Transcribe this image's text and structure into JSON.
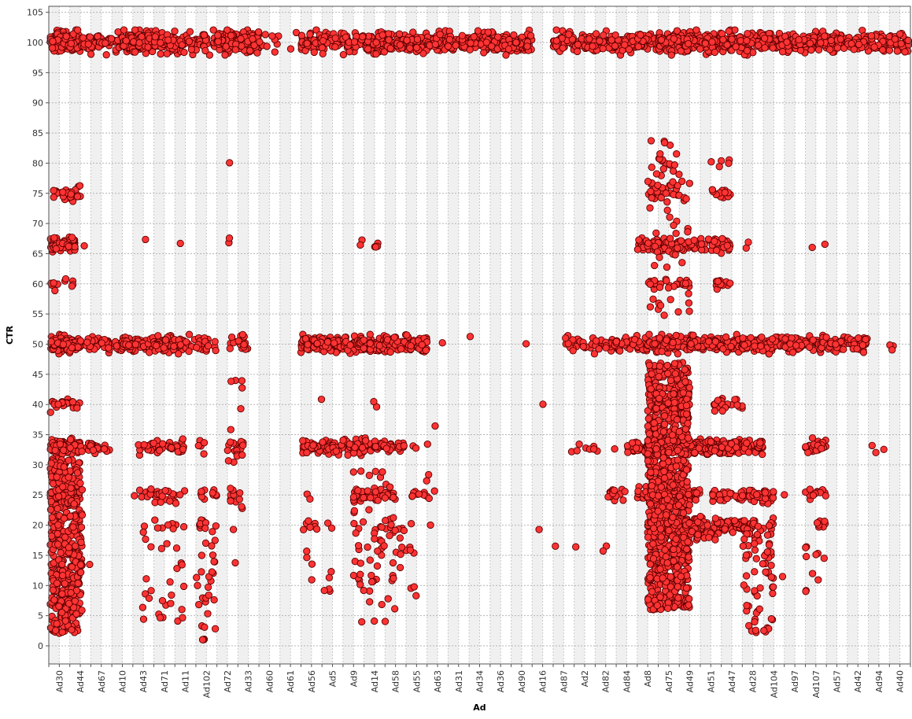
{
  "chart_data": {
    "type": "scatter",
    "title": "",
    "xlabel": "Ad",
    "ylabel": "CTR",
    "ylim": [
      -3,
      106
    ],
    "ytick_step": 5,
    "grid": true,
    "legend": "none",
    "point_color": "#ff3333",
    "point_edge": "#5a0000",
    "categories": [
      "Ad30",
      "Ad44",
      "Ad67",
      "Ad10",
      "Ad43",
      "Ad71",
      "Ad11",
      "Ad102",
      "Ad72",
      "Ad33",
      "Ad60",
      "Ad61",
      "Ad56",
      "Ad5",
      "Ad9",
      "Ad14",
      "Ad58",
      "Ad55",
      "Ad63",
      "Ad31",
      "Ad34",
      "Ad36",
      "Ad90",
      "Ad16",
      "Ad87",
      "Ad2",
      "Ad82",
      "Ad84",
      "Ad8",
      "Ad75",
      "Ad49",
      "Ad51",
      "Ad47",
      "Ad28",
      "Ad104",
      "Ad97",
      "Ad107",
      "Ad57",
      "Ad42",
      "Ad94",
      "Ad40"
    ],
    "slots_per_label": 2,
    "bands": [
      {
        "y": 100,
        "spread": 1.3,
        "groups": [
          {
            "from": 0,
            "to": 3,
            "n": 220
          },
          {
            "from": 3,
            "to": 5,
            "n": 40
          },
          {
            "from": 5,
            "to": 7,
            "n": 25
          },
          {
            "from": 7,
            "to": 10,
            "n": 160
          },
          {
            "from": 10,
            "to": 13,
            "n": 90
          },
          {
            "from": 13,
            "to": 16,
            "n": 40
          },
          {
            "from": 16,
            "to": 20,
            "n": 230
          },
          {
            "from": 20,
            "to": 22,
            "n": 10
          },
          {
            "from": 23,
            "to": 23.6,
            "n": 2
          },
          {
            "from": 24,
            "to": 28,
            "n": 90
          },
          {
            "from": 28,
            "to": 33,
            "n": 120
          },
          {
            "from": 33,
            "to": 38,
            "n": 130
          },
          {
            "from": 38,
            "to": 46,
            "n": 220
          },
          {
            "from": 48,
            "to": 58,
            "n": 200
          },
          {
            "from": 58,
            "to": 64,
            "n": 180
          },
          {
            "from": 64,
            "to": 71,
            "n": 220
          },
          {
            "from": 71,
            "to": 76,
            "n": 110
          },
          {
            "from": 76,
            "to": 83,
            "n": 110
          }
        ]
      },
      {
        "y": 50,
        "spread": 1.0,
        "groups": [
          {
            "from": 0,
            "to": 3,
            "n": 160
          },
          {
            "from": 3,
            "to": 7,
            "n": 40
          },
          {
            "from": 7,
            "to": 10,
            "n": 80
          },
          {
            "from": 10,
            "to": 13,
            "n": 70
          },
          {
            "from": 13,
            "to": 16,
            "n": 25
          },
          {
            "from": 17,
            "to": 19,
            "n": 20
          },
          {
            "from": 24,
            "to": 28,
            "n": 130
          },
          {
            "from": 28,
            "to": 32,
            "n": 110
          },
          {
            "from": 32,
            "to": 36,
            "n": 80
          },
          {
            "from": 36.5,
            "to": 37.5,
            "n": 1
          },
          {
            "from": 40,
            "to": 41,
            "n": 1
          },
          {
            "from": 45,
            "to": 46,
            "n": 1
          },
          {
            "from": 49,
            "to": 52,
            "n": 25
          },
          {
            "from": 52,
            "to": 57,
            "n": 70
          },
          {
            "from": 57,
            "to": 61,
            "n": 110
          },
          {
            "from": 61,
            "to": 66,
            "n": 170
          },
          {
            "from": 66,
            "to": 70,
            "n": 110
          },
          {
            "from": 70,
            "to": 74,
            "n": 90
          },
          {
            "from": 74,
            "to": 76,
            "n": 30
          },
          {
            "from": 76,
            "to": 78,
            "n": 35
          },
          {
            "from": 80,
            "to": 81,
            "n": 3
          }
        ]
      },
      {
        "y": 33,
        "spread": 0.9,
        "groups": [
          {
            "from": 0,
            "to": 3,
            "n": 140
          },
          {
            "from": 3,
            "to": 6,
            "n": 25
          },
          {
            "from": 8,
            "to": 9,
            "n": 3
          },
          {
            "from": 9,
            "to": 11,
            "n": 20
          },
          {
            "from": 11,
            "to": 13,
            "n": 20
          },
          {
            "from": 14,
            "to": 15,
            "n": 5
          },
          {
            "from": 17,
            "to": 18.5,
            "n": 15
          },
          {
            "from": 24,
            "to": 27,
            "n": 50
          },
          {
            "from": 27,
            "to": 31,
            "n": 60
          },
          {
            "from": 31,
            "to": 33,
            "n": 25
          },
          {
            "from": 33,
            "to": 35,
            "n": 10
          },
          {
            "from": 49,
            "to": 50,
            "n": 1
          },
          {
            "from": 50,
            "to": 54,
            "n": 8
          },
          {
            "from": 55,
            "to": 57,
            "n": 30
          },
          {
            "from": 57,
            "to": 60,
            "n": 90
          },
          {
            "from": 60,
            "to": 63,
            "n": 120
          },
          {
            "from": 63,
            "to": 66,
            "n": 100
          },
          {
            "from": 66,
            "to": 68,
            "n": 40
          },
          {
            "from": 72,
            "to": 74,
            "n": 25
          },
          {
            "from": 78,
            "to": 80,
            "n": 3
          }
        ]
      },
      {
        "y": 66.5,
        "spread": 0.9,
        "groups": [
          {
            "from": 0,
            "to": 2.5,
            "n": 90
          },
          {
            "from": 3,
            "to": 3.6,
            "n": 1
          },
          {
            "from": 9,
            "to": 9.6,
            "n": 1
          },
          {
            "from": 12,
            "to": 12.6,
            "n": 1
          },
          {
            "from": 17,
            "to": 18,
            "n": 2
          },
          {
            "from": 29,
            "to": 30,
            "n": 2
          },
          {
            "from": 30,
            "to": 32,
            "n": 4
          },
          {
            "from": 56,
            "to": 62,
            "n": 90
          },
          {
            "from": 62,
            "to": 65,
            "n": 40
          },
          {
            "from": 66,
            "to": 67,
            "n": 2
          },
          {
            "from": 72.5,
            "to": 73.5,
            "n": 1
          }
        ]
      },
      {
        "y": 25,
        "spread": 0.9,
        "groups": [
          {
            "from": 0,
            "to": 3,
            "n": 60
          },
          {
            "from": 8,
            "to": 13,
            "n": 30
          },
          {
            "from": 14,
            "to": 16,
            "n": 10
          },
          {
            "from": 17,
            "to": 18.5,
            "n": 6
          },
          {
            "from": 24.5,
            "to": 25.5,
            "n": 2
          },
          {
            "from": 29,
            "to": 33,
            "n": 45
          },
          {
            "from": 34,
            "to": 36,
            "n": 8
          },
          {
            "from": 53,
            "to": 55,
            "n": 15
          },
          {
            "from": 56,
            "to": 60,
            "n": 80
          },
          {
            "from": 60,
            "to": 62,
            "n": 20
          },
          {
            "from": 63,
            "to": 67,
            "n": 50
          },
          {
            "from": 67,
            "to": 69,
            "n": 25
          },
          {
            "from": 70,
            "to": 71,
            "n": 1
          },
          {
            "from": 72,
            "to": 74,
            "n": 12
          }
        ]
      },
      {
        "y": 40,
        "spread": 0.9,
        "groups": [
          {
            "from": 0,
            "to": 3,
            "n": 25
          },
          {
            "from": 30.5,
            "to": 31.5,
            "n": 2
          },
          {
            "from": 57,
            "to": 60,
            "n": 45
          },
          {
            "from": 63,
            "to": 66,
            "n": 25
          }
        ]
      },
      {
        "y": 75,
        "spread": 0.9,
        "groups": [
          {
            "from": 0,
            "to": 3,
            "n": 30
          },
          {
            "from": 57,
            "to": 60,
            "n": 30
          },
          {
            "from": 63,
            "to": 65,
            "n": 12
          }
        ]
      },
      {
        "y": 60,
        "spread": 0.7,
        "groups": [
          {
            "from": 0,
            "to": 1,
            "n": 6
          },
          {
            "from": 1.5,
            "to": 2.5,
            "n": 5
          },
          {
            "from": 57,
            "to": 61,
            "n": 25
          },
          {
            "from": 63.5,
            "to": 65,
            "n": 12
          }
        ]
      },
      {
        "y": 80,
        "spread": 0.7,
        "groups": [
          {
            "from": 57,
            "to": 60,
            "n": 8
          },
          {
            "from": 62,
            "to": 65,
            "n": 5
          },
          {
            "from": 17,
            "to": 17.6,
            "n": 1
          }
        ]
      },
      {
        "y": 20,
        "spread": 1.0,
        "groups": [
          {
            "from": 9,
            "to": 13,
            "n": 10
          },
          {
            "from": 14,
            "to": 16,
            "n": 8
          },
          {
            "from": 24,
            "to": 27,
            "n": 8
          },
          {
            "from": 29,
            "to": 33,
            "n": 10
          },
          {
            "from": 33,
            "to": 35,
            "n": 4
          },
          {
            "from": 57,
            "to": 61,
            "n": 80
          },
          {
            "from": 61,
            "to": 67,
            "n": 90
          },
          {
            "from": 67,
            "to": 69,
            "n": 12
          },
          {
            "from": 72,
            "to": 74,
            "n": 8
          }
        ]
      }
    ],
    "scatter_regions": [
      {
        "from": 0,
        "to": 3.2,
        "ymin": 2,
        "ymax": 31,
        "n": 450
      },
      {
        "from": 3,
        "to": 4,
        "ymin": 10,
        "ymax": 20,
        "n": 3
      },
      {
        "from": 8.5,
        "to": 9,
        "ymin": 6,
        "ymax": 7,
        "n": 1
      },
      {
        "from": 9,
        "to": 13,
        "ymin": 4,
        "ymax": 19,
        "n": 25
      },
      {
        "from": 14,
        "to": 16,
        "ymin": 1,
        "ymax": 20,
        "n": 30
      },
      {
        "from": 17,
        "to": 18.5,
        "ymin": 13,
        "ymax": 45,
        "n": 18
      },
      {
        "from": 24,
        "to": 27,
        "ymin": 9,
        "ymax": 20,
        "n": 10
      },
      {
        "from": 29,
        "to": 33,
        "ymin": 3,
        "ymax": 29,
        "n": 60
      },
      {
        "from": 33,
        "to": 35,
        "ymin": 6,
        "ymax": 18,
        "n": 12
      },
      {
        "from": 35,
        "to": 37,
        "ymin": 19,
        "ymax": 38,
        "n": 8
      },
      {
        "from": 46,
        "to": 47,
        "ymin": 19,
        "ymax": 20,
        "n": 1
      },
      {
        "from": 48,
        "to": 49,
        "ymin": 16,
        "ymax": 17,
        "n": 1
      },
      {
        "from": 50,
        "to": 51,
        "ymin": 16,
        "ymax": 17,
        "n": 1
      },
      {
        "from": 52.5,
        "to": 53.5,
        "ymin": 14,
        "ymax": 17,
        "n": 2
      },
      {
        "from": 57,
        "to": 61,
        "ymin": 6,
        "ymax": 47,
        "n": 900
      },
      {
        "from": 57,
        "to": 61,
        "ymin": 53,
        "ymax": 84,
        "n": 60
      },
      {
        "from": 61,
        "to": 64,
        "ymin": 17,
        "ymax": 22,
        "n": 30
      },
      {
        "from": 66,
        "to": 69,
        "ymin": 2,
        "ymax": 20,
        "n": 70
      },
      {
        "from": 69.5,
        "to": 70.5,
        "ymin": 11,
        "ymax": 12,
        "n": 1
      },
      {
        "from": 72,
        "to": 74,
        "ymin": 9,
        "ymax": 18,
        "n": 10
      },
      {
        "from": 25,
        "to": 26,
        "ymin": 40,
        "ymax": 41,
        "n": 1
      },
      {
        "from": 47,
        "to": 48,
        "ymin": 40,
        "ymax": 41,
        "n": 1
      },
      {
        "from": 73,
        "to": 74,
        "ymin": 66,
        "ymax": 68,
        "n": 1
      }
    ]
  }
}
